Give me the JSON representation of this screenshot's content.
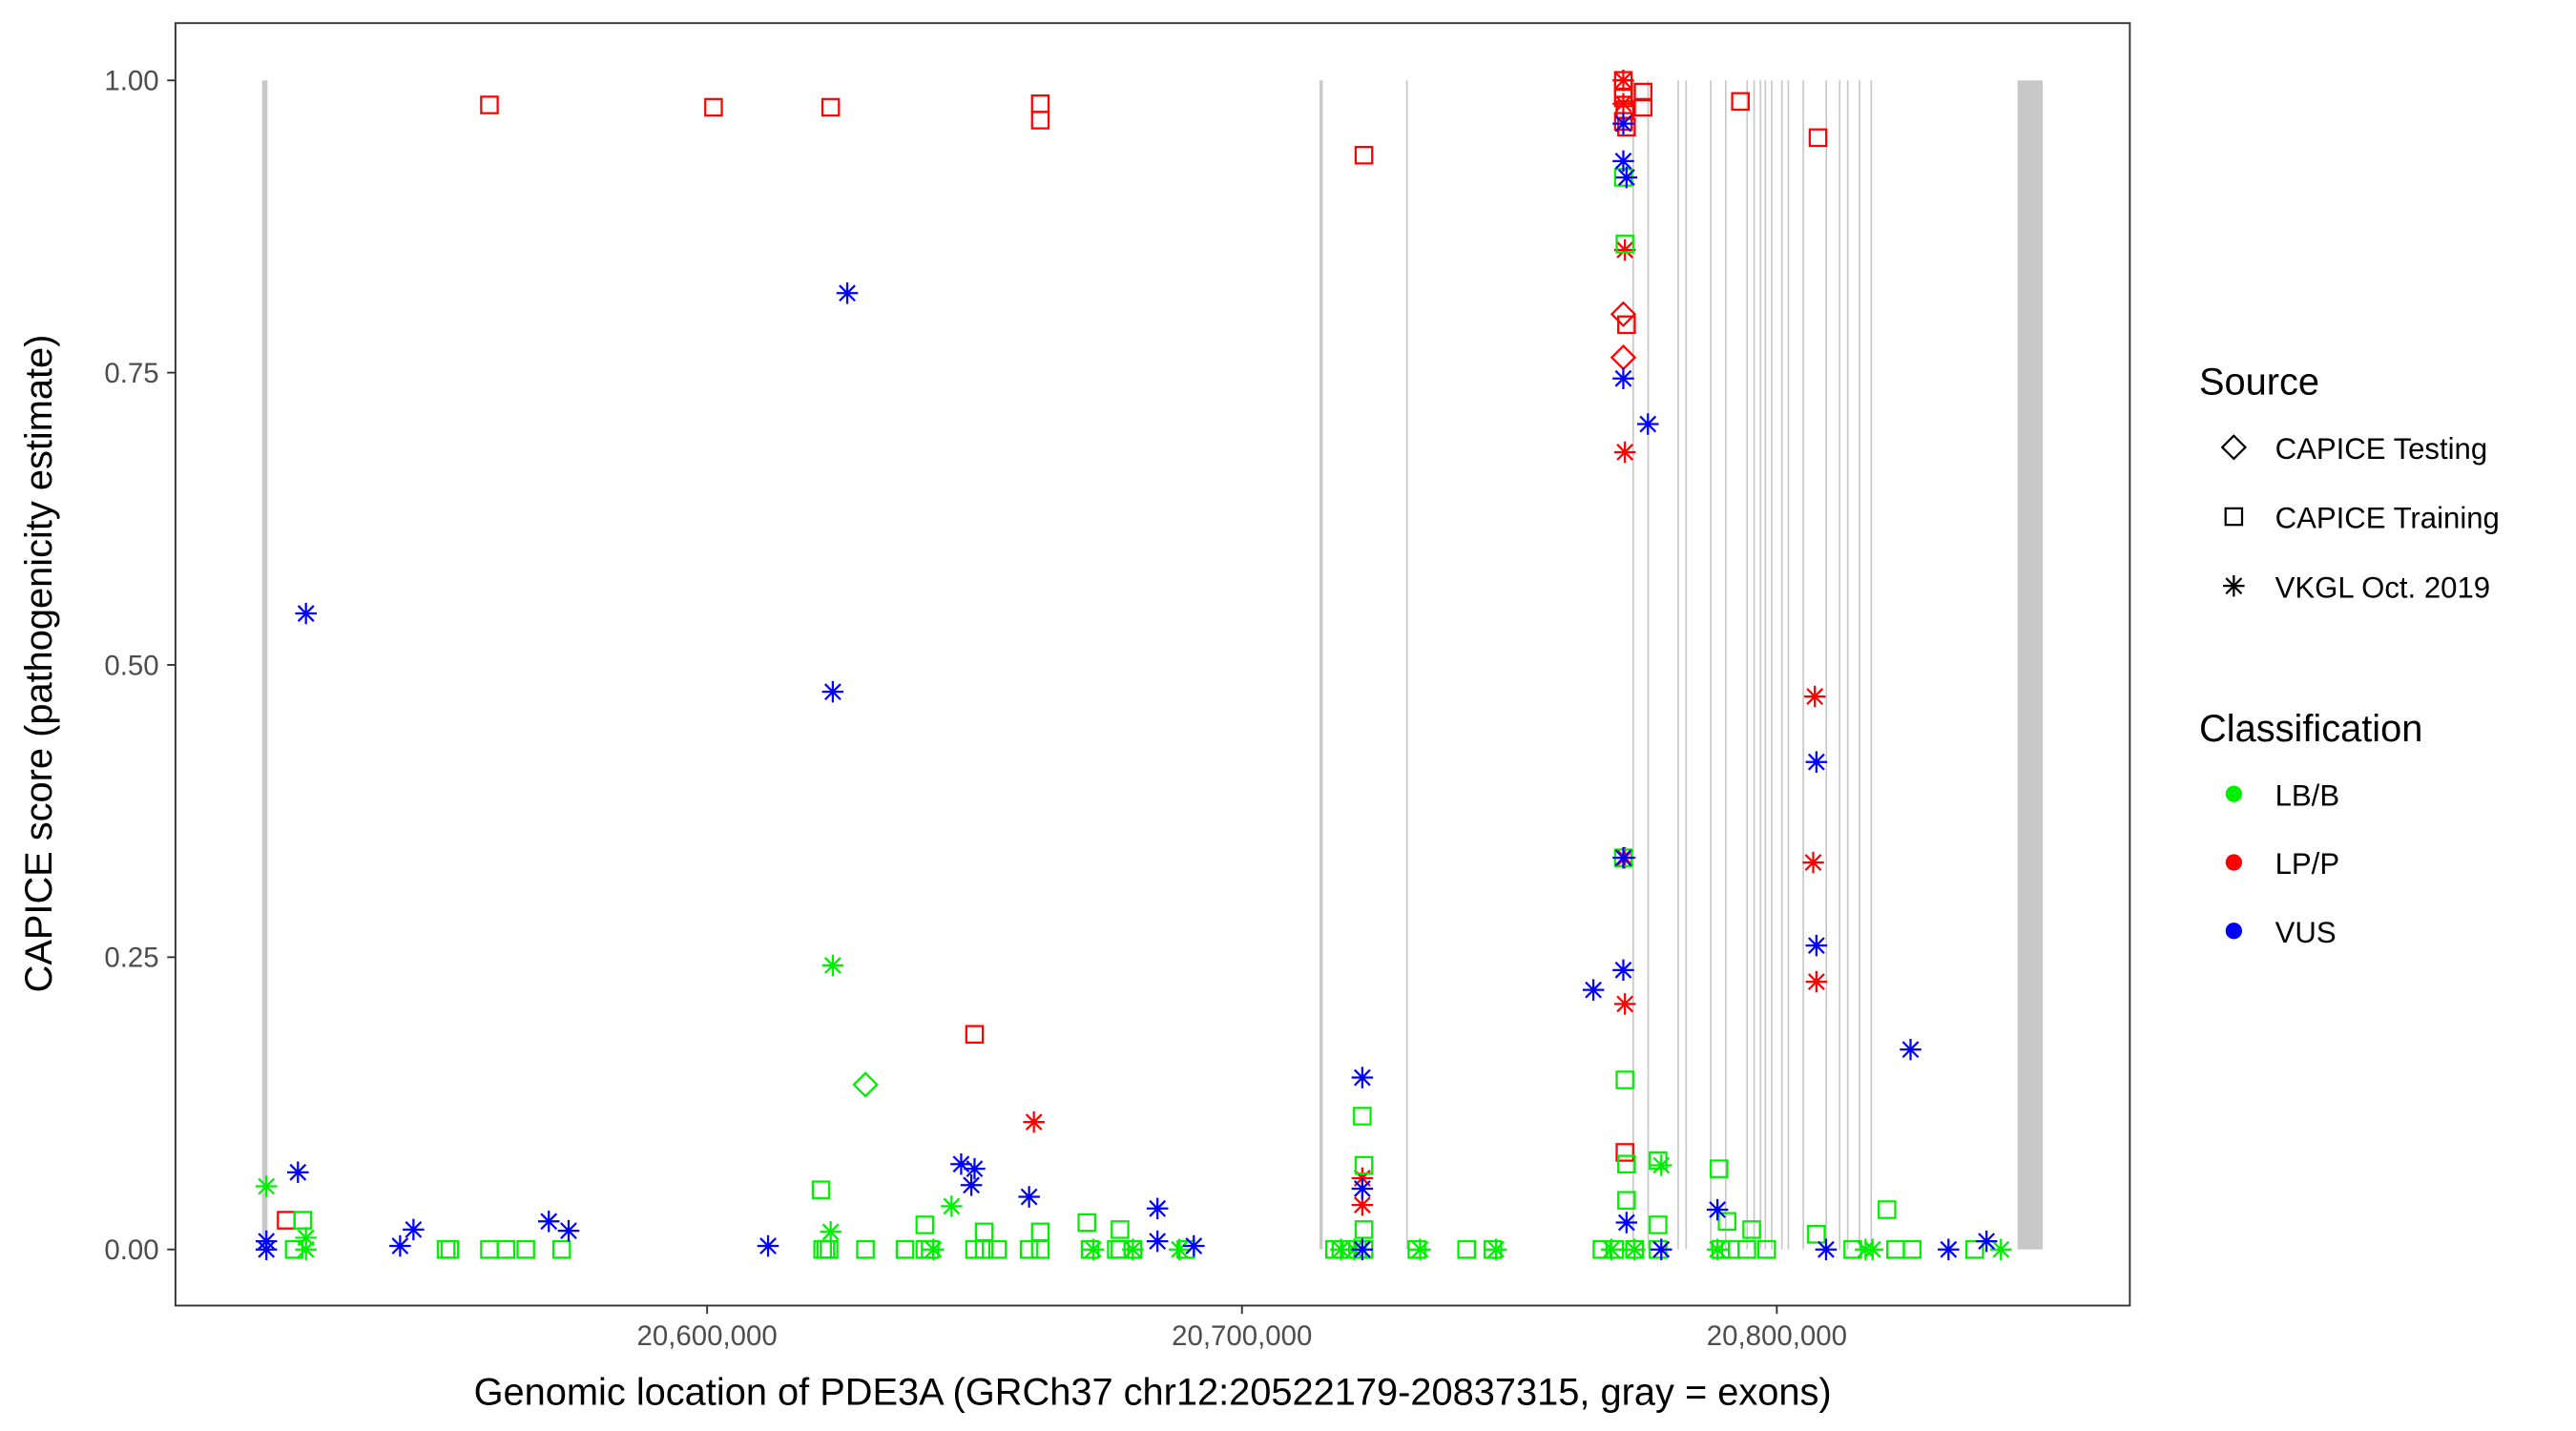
{
  "chart_data": {
    "type": "scatter",
    "xlabel": "Genomic location of PDE3A (GRCh37 chr12:20522179-20837315, gray = exons)",
    "ylabel": "CAPICE score (pathogenicity estimate)",
    "xlim": [
      20500600,
      20866000
    ],
    "ylim": [
      -0.048,
      1.049
    ],
    "x_ticks": [
      20600000,
      20700000,
      20800000
    ],
    "x_tick_labels": [
      "20,600,000",
      "20,700,000",
      "20,800,000"
    ],
    "y_ticks": [
      0,
      0.25,
      0.5,
      0.75,
      1.0
    ],
    "y_tick_labels": [
      "0.00",
      "0.25",
      "0.50",
      "0.75",
      "1.00"
    ],
    "grid": false,
    "legend": {
      "placement": "right",
      "source_title": "Source",
      "sources": [
        {
          "key": "testing",
          "label": "CAPICE Testing",
          "shape": "diamond"
        },
        {
          "key": "training",
          "label": "CAPICE Training",
          "shape": "square"
        },
        {
          "key": "vkgl",
          "label": "VKGL Oct. 2019",
          "shape": "asterisk"
        }
      ],
      "classification_title": "Classification",
      "classes": [
        {
          "key": "LB/B",
          "label": "LB/B",
          "color": "#00ee00"
        },
        {
          "key": "LP/P",
          "label": "LP/P",
          "color": "#ff0000"
        },
        {
          "key": "VUS",
          "label": "VUS",
          "color": "#0000ff"
        }
      ]
    },
    "exon_color": "#c8c8c8",
    "exons": [
      [
        20516800,
        20517800
      ],
      [
        20714500,
        20715100
      ],
      [
        20730700,
        20731000
      ],
      [
        20773000,
        20773300
      ],
      [
        20775800,
        20776100
      ],
      [
        20781400,
        20781700
      ],
      [
        20782900,
        20783200
      ],
      [
        20787500,
        20787800
      ],
      [
        20790300,
        20790600
      ],
      [
        20794300,
        20794600
      ],
      [
        20795600,
        20795900
      ],
      [
        20796800,
        20797100
      ],
      [
        20797700,
        20798000
      ],
      [
        20798900,
        20799200
      ],
      [
        20800800,
        20801100
      ],
      [
        20802000,
        20802300
      ],
      [
        20804800,
        20805100
      ],
      [
        20809100,
        20809400
      ],
      [
        20811600,
        20811900
      ],
      [
        20813100,
        20813400
      ],
      [
        20815300,
        20815600
      ],
      [
        20817500,
        20817800
      ],
      [
        20845000,
        20849700
      ]
    ],
    "series": [
      {
        "source": "training",
        "class": "LP/P",
        "points": [
          [
            20559300,
            0.979
          ],
          [
            20601200,
            0.977
          ],
          [
            20623100,
            0.977
          ],
          [
            20662300,
            0.98
          ],
          [
            20662300,
            0.966
          ],
          [
            20722800,
            0.936
          ],
          [
            20771300,
            1.0
          ],
          [
            20771300,
            0.993
          ],
          [
            20771300,
            0.985
          ],
          [
            20771600,
            0.975
          ],
          [
            20771300,
            0.965
          ],
          [
            20771900,
            0.96
          ],
          [
            20775000,
            0.99
          ],
          [
            20775000,
            0.977
          ],
          [
            20793200,
            0.982
          ],
          [
            20807700,
            0.951
          ],
          [
            20521300,
            0.025
          ],
          [
            20650000,
            0.184
          ],
          [
            20771900,
            0.791
          ],
          [
            20771600,
            0.083
          ]
        ]
      },
      {
        "source": "testing",
        "class": "LP/P",
        "points": [
          [
            20771300,
            0.8
          ],
          [
            20771300,
            0.763
          ]
        ]
      },
      {
        "source": "vkgl",
        "class": "LP/P",
        "points": [
          [
            20661100,
            0.109
          ],
          [
            20722500,
            0.061
          ],
          [
            20722500,
            0.038
          ],
          [
            20771600,
            0.855
          ],
          [
            20771600,
            0.682
          ],
          [
            20771600,
            0.21
          ],
          [
            20771600,
            0.335
          ],
          [
            20807100,
            0.473
          ],
          [
            20806800,
            0.331
          ],
          [
            20807400,
            0.229
          ],
          [
            20771300,
            1.0
          ],
          [
            20771300,
            0.98
          ]
        ]
      },
      {
        "source": "training",
        "class": "LB/B",
        "points": [
          [
            20522800,
            0.0
          ],
          [
            20524400,
            0.025
          ],
          [
            20551200,
            0.0
          ],
          [
            20551900,
            0.0
          ],
          [
            20559300,
            0.0
          ],
          [
            20562400,
            0.0
          ],
          [
            20566100,
            0.0
          ],
          [
            20572800,
            0.0
          ],
          [
            20621600,
            0.0
          ],
          [
            20622200,
            0.0
          ],
          [
            20622800,
            0.0
          ],
          [
            20629600,
            0.0
          ],
          [
            20637000,
            0.0
          ],
          [
            20640700,
            0.0
          ],
          [
            20641700,
            0.0
          ],
          [
            20650000,
            0.0
          ],
          [
            20651800,
            0.0
          ],
          [
            20654300,
            0.0
          ],
          [
            20660200,
            0.0
          ],
          [
            20662300,
            0.0
          ],
          [
            20671600,
            0.0
          ],
          [
            20676500,
            0.0
          ],
          [
            20677200,
            0.0
          ],
          [
            20679600,
            0.0
          ],
          [
            20689500,
            0.0
          ],
          [
            20717300,
            0.0
          ],
          [
            20718500,
            0.0
          ],
          [
            20721600,
            0.0
          ],
          [
            20722800,
            0.0
          ],
          [
            20732700,
            0.0
          ],
          [
            20742000,
            0.0
          ],
          [
            20746900,
            0.0
          ],
          [
            20767300,
            0.0
          ],
          [
            20769700,
            0.0
          ],
          [
            20773400,
            0.0
          ],
          [
            20777800,
            0.0
          ],
          [
            20789500,
            0.0
          ],
          [
            20791300,
            0.0
          ],
          [
            20794400,
            0.0
          ],
          [
            20798100,
            0.0
          ],
          [
            20814200,
            0.0
          ],
          [
            20822200,
            0.0
          ],
          [
            20825300,
            0.0
          ],
          [
            20837000,
            0.0
          ],
          [
            20621300,
            0.051
          ],
          [
            20640700,
            0.021
          ],
          [
            20651800,
            0.015
          ],
          [
            20662300,
            0.015
          ],
          [
            20671000,
            0.023
          ],
          [
            20677200,
            0.017
          ],
          [
            20722500,
            0.114
          ],
          [
            20722800,
            0.072
          ],
          [
            20722800,
            0.017
          ],
          [
            20771600,
            0.145
          ],
          [
            20771600,
            0.86
          ],
          [
            20771300,
            0.917
          ],
          [
            20771900,
            0.073
          ],
          [
            20771900,
            0.042
          ],
          [
            20777800,
            0.076
          ],
          [
            20777800,
            0.021
          ],
          [
            20789200,
            0.069
          ],
          [
            20790700,
            0.024
          ],
          [
            20795300,
            0.017
          ],
          [
            20807400,
            0.013
          ],
          [
            20820600,
            0.034
          ],
          [
            20771300,
            0.335
          ]
        ]
      },
      {
        "source": "testing",
        "class": "LB/B",
        "points": [
          [
            20629600,
            0.141
          ]
        ]
      },
      {
        "source": "vkgl",
        "class": "LB/B",
        "points": [
          [
            20517600,
            0.054
          ],
          [
            20525000,
            0.0
          ],
          [
            20525000,
            0.01
          ],
          [
            20623500,
            0.243
          ],
          [
            20623100,
            0.015
          ],
          [
            20645700,
            0.037
          ],
          [
            20642300,
            0.0
          ],
          [
            20672200,
            0.0
          ],
          [
            20679600,
            0.0
          ],
          [
            20688300,
            0.0
          ],
          [
            20718500,
            0.0
          ],
          [
            20721000,
            0.0
          ],
          [
            20733300,
            0.0
          ],
          [
            20747500,
            0.0
          ],
          [
            20773400,
            0.0
          ],
          [
            20778400,
            0.072
          ],
          [
            20788900,
            0.0
          ],
          [
            20816600,
            0.0
          ],
          [
            20817900,
            0.0
          ],
          [
            20841900,
            0.0
          ],
          [
            20769100,
            0.0
          ]
        ]
      },
      {
        "source": "vkgl",
        "class": "VUS",
        "points": [
          [
            20517600,
            0.007
          ],
          [
            20517600,
            0.0
          ],
          [
            20523500,
            0.066
          ],
          [
            20525000,
            0.544
          ],
          [
            20542600,
            0.003
          ],
          [
            20545100,
            0.017
          ],
          [
            20570400,
            0.024
          ],
          [
            20574100,
            0.016
          ],
          [
            20611400,
            0.003
          ],
          [
            20623500,
            0.477
          ],
          [
            20626200,
            0.818
          ],
          [
            20647500,
            0.073
          ],
          [
            20649400,
            0.055
          ],
          [
            20650000,
            0.069
          ],
          [
            20660200,
            0.045
          ],
          [
            20684200,
            0.035
          ],
          [
            20684200,
            0.007
          ],
          [
            20691000,
            0.003
          ],
          [
            20722500,
            0.147
          ],
          [
            20722500,
            0.052
          ],
          [
            20722500,
            0.0
          ],
          [
            20765700,
            0.222
          ],
          [
            20771300,
            0.239
          ],
          [
            20771300,
            0.335
          ],
          [
            20771300,
            0.745
          ],
          [
            20771300,
            0.931
          ],
          [
            20771900,
            0.917
          ],
          [
            20771300,
            0.963
          ],
          [
            20775900,
            0.706
          ],
          [
            20771900,
            0.023
          ],
          [
            20778400,
            0.0
          ],
          [
            20788900,
            0.034
          ],
          [
            20807400,
            0.417
          ],
          [
            20807400,
            0.26
          ],
          [
            20809200,
            0.0
          ],
          [
            20825000,
            0.171
          ],
          [
            20832100,
            0.0
          ],
          [
            20839200,
            0.007
          ]
        ]
      }
    ]
  }
}
